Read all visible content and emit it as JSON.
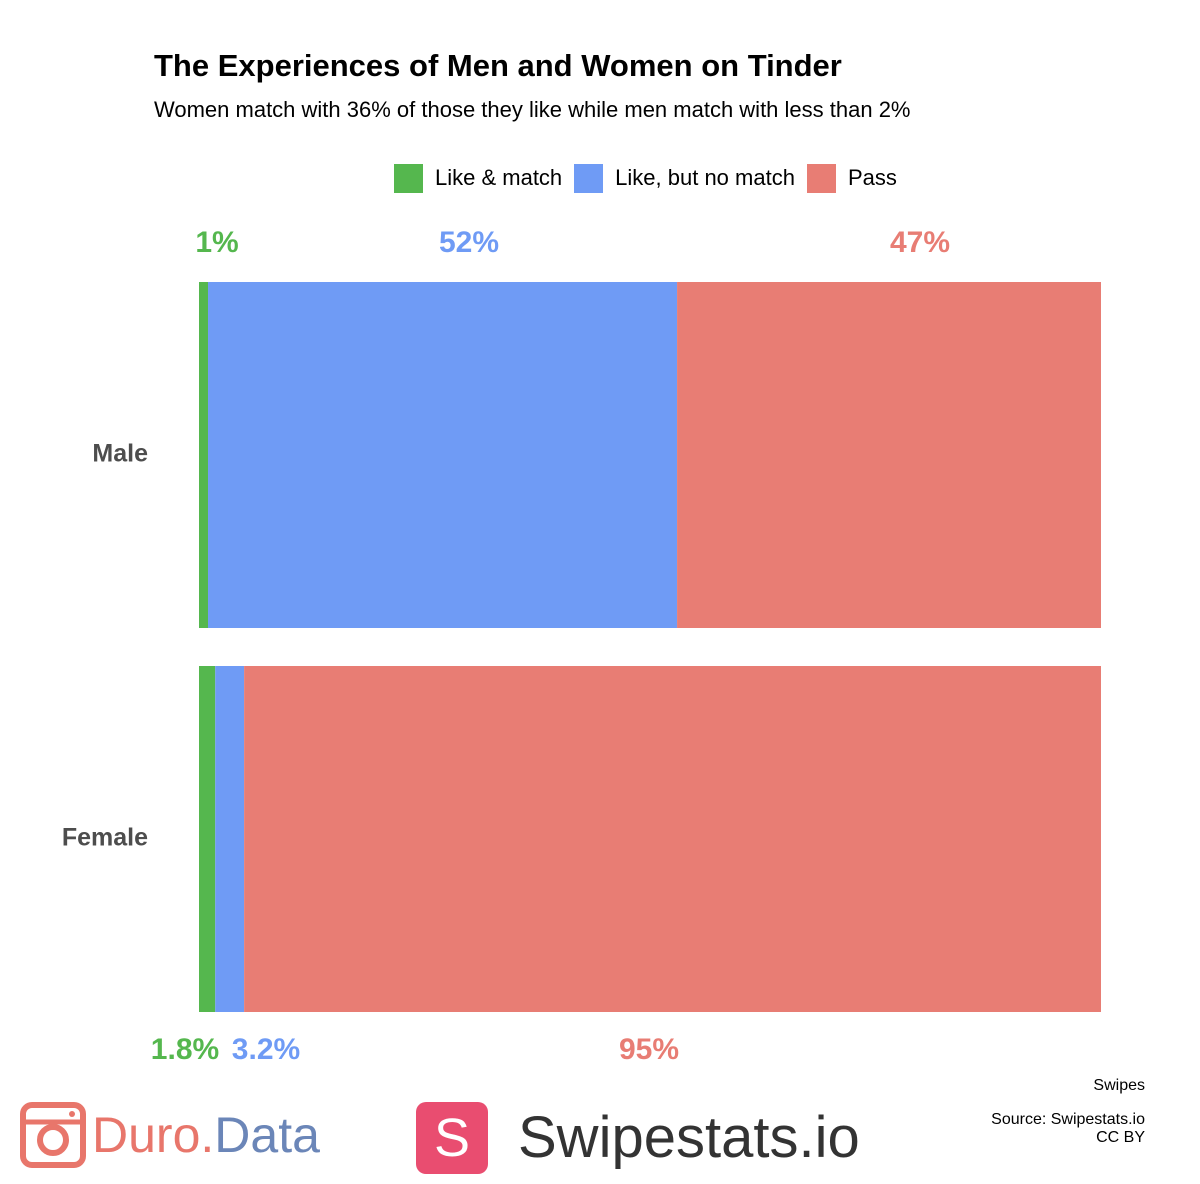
{
  "chart_data": {
    "type": "bar",
    "orientation": "horizontal",
    "stacked": true,
    "title": "The Experiences of Men and Women on Tinder",
    "subtitle": "Women match with 36% of those they like while men match with less than 2%",
    "categories": [
      "Male",
      "Female"
    ],
    "series": [
      {
        "name": "Like & match",
        "color": "#55b74e",
        "values": [
          1,
          1.8
        ],
        "labels": [
          "1%",
          "1.8%"
        ]
      },
      {
        "name": "Like, but no match",
        "color": "#6f9bf5",
        "values": [
          52,
          3.2
        ],
        "labels": [
          "52%",
          "3.2%"
        ]
      },
      {
        "name": "Pass",
        "color": "#e87d74",
        "values": [
          47,
          95
        ],
        "labels": [
          "47%",
          "95%"
        ]
      }
    ],
    "xlim": [
      0,
      100
    ],
    "legend": "top",
    "grid": false,
    "xlabel": "",
    "ylabel": ""
  },
  "caption": {
    "axis_title": "Swipes",
    "source": "Source: Swipestats.io",
    "license": "CC BY"
  },
  "logos": {
    "duro": {
      "part1": "Duro",
      "dot": ".",
      "part2": "Data",
      "icon": "camera-icon"
    },
    "swipestats": {
      "badge": "S",
      "name": "Swipestats.io"
    }
  }
}
